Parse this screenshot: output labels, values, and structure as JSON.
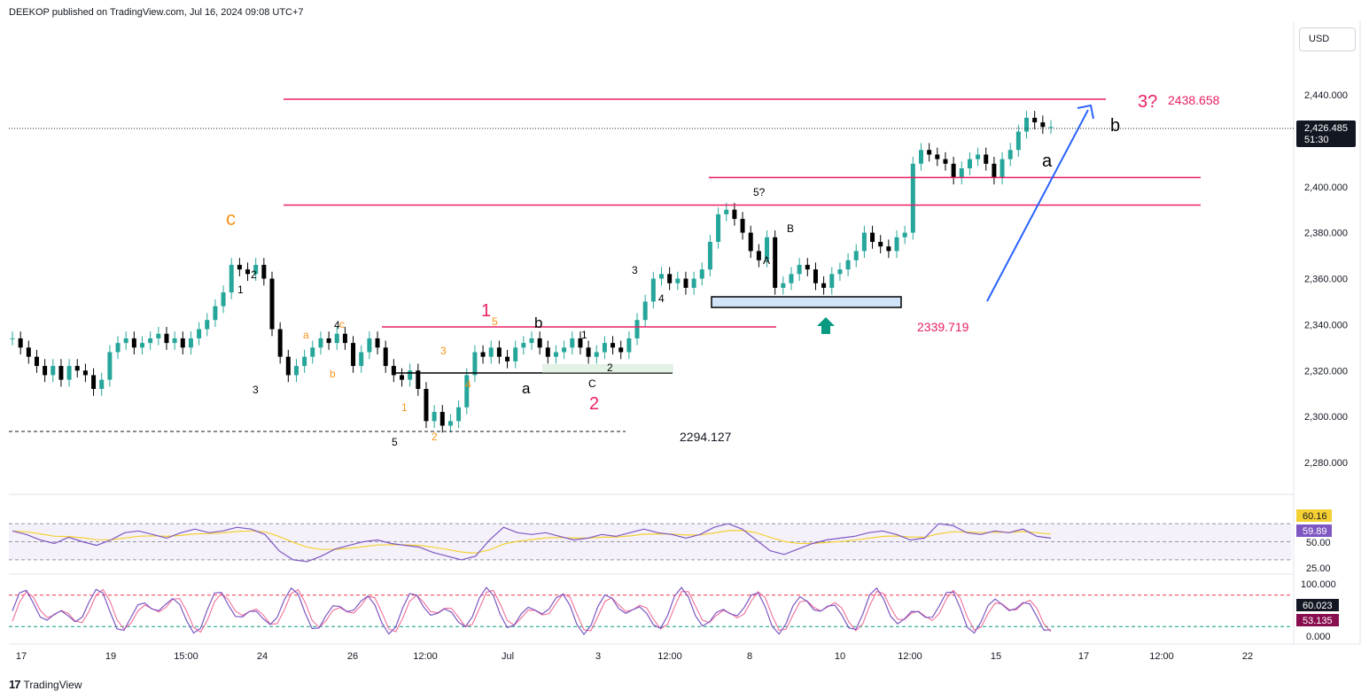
{
  "header": {
    "published": "DEEKOP published on TradingView.com, Jul 16, 2024 09:08 UTC+7"
  },
  "currency": "USD",
  "footer": {
    "brand": "TradingView",
    "brand_icon": "tradingview-logo-icon"
  },
  "colors": {
    "resistance": "#e91e63",
    "support": "#000000",
    "arrow": "#2962ff",
    "rsi": "#7e57c2",
    "rsi_ma": "#f5d033",
    "stoch_k": "#7e57c2",
    "stoch_d": "#f06292",
    "candle_up": "#26a69a",
    "candle_down": "#000000",
    "teal_arrow": "#089981"
  },
  "chart_data": {
    "type": "candlestick",
    "y_ticks": [
      "2,280.000",
      "2,300.000",
      "2,320.000",
      "2,340.000",
      "2,360.000",
      "2,380.000",
      "2,400.000",
      "2,420.000",
      "2,440.000"
    ],
    "y_values": [
      2280,
      2300,
      2320,
      2340,
      2360,
      2380,
      2400,
      2420,
      2440
    ],
    "ylim": [
      2268,
      2458
    ],
    "x_ticks": [
      "17",
      "19",
      "15:00",
      "24",
      "26",
      "12:00",
      "Jul",
      "3",
      "12:00",
      "8",
      "10",
      "12:00",
      "15",
      "17",
      "12:00",
      "22"
    ],
    "last_price": {
      "value": "2,426.485",
      "countdown": "51:30"
    },
    "price_levels": [
      {
        "label": "2438.658",
        "value": 2438.658
      },
      {
        "label": "2339.719",
        "value": 2339.719
      },
      {
        "label": "2294.127",
        "value": 2294.127
      }
    ],
    "resistance_lines": [
      2438.658,
      2404,
      2392,
      2339
    ],
    "support_line": 2320.5,
    "support_box": [
      2347,
      2352
    ],
    "wave_labels_large": [
      {
        "text": "c",
        "color": "#f7931a"
      },
      {
        "text": "1",
        "color": "#e91e63"
      },
      {
        "text": "2",
        "color": "#e91e63"
      },
      {
        "text": "3?",
        "color": "#e91e63"
      },
      {
        "text": "a",
        "color": "#000000"
      },
      {
        "text": "b",
        "color": "#000000"
      },
      {
        "text": "a",
        "color": "#000000"
      },
      {
        "text": "b",
        "color": "#000000"
      }
    ],
    "wave_labels_small": [
      "1",
      "2",
      "3",
      "4",
      "5",
      "3",
      "4",
      "5?",
      "A",
      "B",
      "C",
      "1",
      "2",
      "3",
      "4",
      "5",
      "a",
      "b",
      "c",
      "1",
      "2",
      "3",
      "4",
      "5"
    ],
    "close_series": [
      2334,
      2330,
      2326,
      2322,
      2318,
      2322,
      2316,
      2322,
      2320,
      2318,
      2312,
      2316,
      2328,
      2332,
      2334,
      2330,
      2332,
      2334,
      2336,
      2332,
      2334,
      2330,
      2334,
      2338,
      2342,
      2348,
      2354,
      2366,
      2364,
      2362,
      2366,
      2360,
      2338,
      2326,
      2318,
      2322,
      2326,
      2330,
      2334,
      2332,
      2336,
      2332,
      2322,
      2328,
      2334,
      2330,
      2322,
      2318,
      2316,
      2320,
      2312,
      2298,
      2302,
      2296,
      2298,
      2304,
      2318,
      2328,
      2326,
      2330,
      2326,
      2324,
      2330,
      2332,
      2334,
      2330,
      2326,
      2328,
      2330,
      2334,
      2330,
      2326,
      2328,
      2332,
      2330,
      2328,
      2334,
      2342,
      2350,
      2360,
      2362,
      2358,
      2360,
      2356,
      2360,
      2364,
      2376,
      2388,
      2390,
      2386,
      2380,
      2372,
      2368,
      2378,
      2356,
      2358,
      2362,
      2366,
      2364,
      2358,
      2356,
      2362,
      2364,
      2368,
      2372,
      2380,
      2376,
      2374,
      2372,
      2378,
      2380,
      2410,
      2416,
      2414,
      2412,
      2410,
      2404,
      2408,
      2412,
      2414,
      2410,
      2404,
      2412,
      2416,
      2424,
      2430,
      2428,
      2426,
      2426
    ],
    "rsi": {
      "levels": [
        "25.00",
        "50.00"
      ],
      "value": "59.89",
      "ma_value": "60.16",
      "series": [
        62,
        58,
        52,
        48,
        55,
        50,
        46,
        52,
        60,
        62,
        58,
        54,
        60,
        64,
        60,
        62,
        66,
        64,
        58,
        40,
        30,
        28,
        34,
        42,
        46,
        50,
        52,
        48,
        46,
        44,
        38,
        34,
        30,
        34,
        52,
        66,
        60,
        58,
        60,
        56,
        52,
        54,
        58,
        56,
        60,
        64,
        60,
        58,
        54,
        58,
        66,
        70,
        64,
        52,
        40,
        36,
        42,
        48,
        52,
        54,
        56,
        60,
        62,
        58,
        52,
        54,
        70,
        68,
        60,
        58,
        62,
        60,
        64,
        56,
        54
      ]
    },
    "stoch": {
      "levels": [
        "0.000",
        "100.000"
      ],
      "k_value": "60.023",
      "d_value": "53.135"
    }
  }
}
